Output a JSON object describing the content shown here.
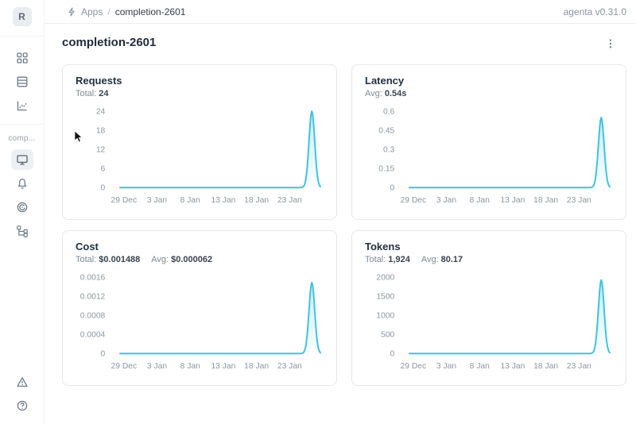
{
  "app": {
    "brand_letter": "R",
    "version": "agenta v0.31.0"
  },
  "breadcrumb": {
    "section": "Apps",
    "separator": "/",
    "current": "completion-2601"
  },
  "page": {
    "title": "completion-2601"
  },
  "sidebar": {
    "workspace_label": "comp...",
    "top_items": [
      "apps",
      "registry",
      "observability"
    ],
    "app_items": [
      "overview",
      "evaluations",
      "observability",
      "traces"
    ],
    "bottom_items": [
      "alerts",
      "help"
    ]
  },
  "colors": {
    "accent_line": "#3ec2de",
    "accent_fill": "#3ec2de",
    "tick_text": "#8b95a1"
  },
  "chart_data": [
    {
      "type": "area",
      "title": "Requests",
      "stats": [
        {
          "label": "Total:",
          "value": "24"
        }
      ],
      "x_tick_labels": [
        "29 Dec",
        "3 Jan",
        "8 Jan",
        "13 Jan",
        "18 Jan",
        "23 Jan"
      ],
      "y_tick_labels": [
        "0",
        "6",
        "12",
        "18",
        "24"
      ],
      "ylim": [
        0,
        24
      ],
      "peak_value": 24,
      "points": [
        [
          "29 Dec",
          0
        ],
        [
          "13 Jan",
          0
        ],
        [
          "23 Jan",
          0
        ],
        [
          "25 Jan",
          0
        ],
        [
          "26 Jan",
          24
        ],
        [
          "27 Jan",
          0
        ]
      ]
    },
    {
      "type": "area",
      "title": "Latency",
      "stats": [
        {
          "label": "Avg:",
          "value": "0.54s"
        }
      ],
      "x_tick_labels": [
        "29 Dec",
        "3 Jan",
        "8 Jan",
        "13 Jan",
        "18 Jan",
        "23 Jan"
      ],
      "y_tick_labels": [
        "0",
        "0.15",
        "0.3",
        "0.45",
        "0.6"
      ],
      "ylim": [
        0,
        0.6
      ],
      "peak_value": 0.55,
      "points": [
        [
          "29 Dec",
          0
        ],
        [
          "13 Jan",
          0
        ],
        [
          "23 Jan",
          0
        ],
        [
          "25 Jan",
          0
        ],
        [
          "26 Jan",
          0.55
        ],
        [
          "27 Jan",
          0
        ]
      ]
    },
    {
      "type": "area",
      "title": "Cost",
      "stats": [
        {
          "label": "Total:",
          "value": "$0.001488"
        },
        {
          "label": "Avg:",
          "value": "$0.000062"
        }
      ],
      "x_tick_labels": [
        "29 Dec",
        "3 Jan",
        "8 Jan",
        "13 Jan",
        "18 Jan",
        "23 Jan"
      ],
      "y_tick_labels": [
        "0",
        "0.0004",
        "0.0008",
        "0.0012",
        "0.0016"
      ],
      "ylim": [
        0,
        0.0016
      ],
      "peak_value": 0.001488,
      "points": [
        [
          "29 Dec",
          0
        ],
        [
          "13 Jan",
          0
        ],
        [
          "23 Jan",
          0
        ],
        [
          "25 Jan",
          0
        ],
        [
          "26 Jan",
          0.001488
        ],
        [
          "27 Jan",
          0
        ]
      ]
    },
    {
      "type": "area",
      "title": "Tokens",
      "stats": [
        {
          "label": "Total:",
          "value": "1,924"
        },
        {
          "label": "Avg:",
          "value": "80.17"
        }
      ],
      "x_tick_labels": [
        "29 Dec",
        "3 Jan",
        "8 Jan",
        "13 Jan",
        "18 Jan",
        "23 Jan"
      ],
      "y_tick_labels": [
        "0",
        "500",
        "1000",
        "1500",
        "2000"
      ],
      "ylim": [
        0,
        2000
      ],
      "peak_value": 1924,
      "points": [
        [
          "29 Dec",
          0
        ],
        [
          "13 Jan",
          0
        ],
        [
          "23 Jan",
          0
        ],
        [
          "25 Jan",
          0
        ],
        [
          "26 Jan",
          1924
        ],
        [
          "27 Jan",
          0
        ]
      ]
    }
  ]
}
